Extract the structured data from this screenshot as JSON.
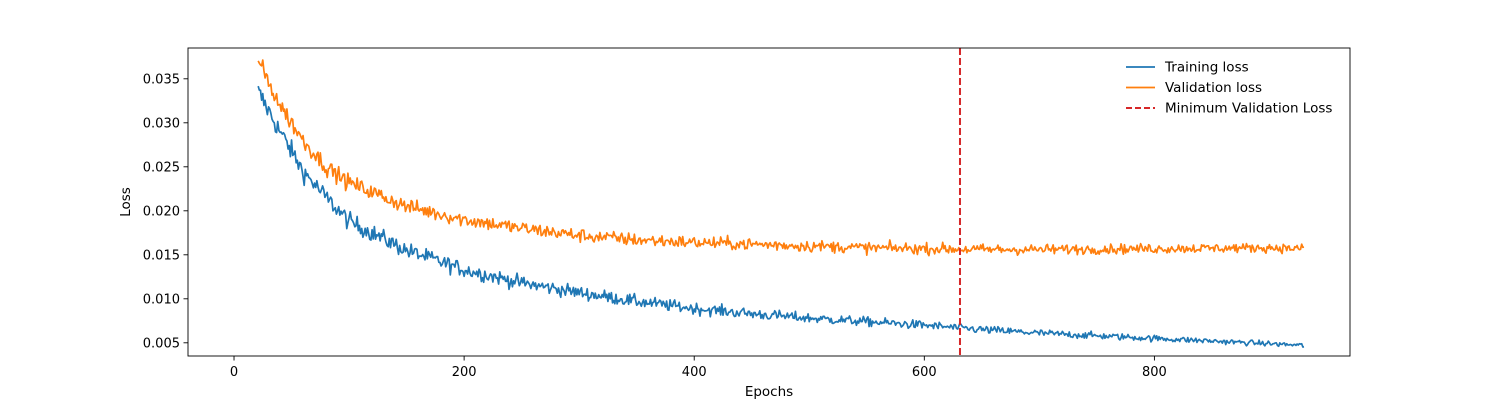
{
  "chart_data": {
    "type": "line",
    "title": "",
    "xlabel": "Epochs",
    "ylabel": "Loss",
    "xlim": [
      -40,
      970
    ],
    "ylim": [
      0.0035,
      0.0385
    ],
    "xticks": [
      0,
      200,
      400,
      600,
      800
    ],
    "xtick_labels": [
      "0",
      "200",
      "400",
      "600",
      "800"
    ],
    "yticks": [
      0.005,
      0.01,
      0.015,
      0.02,
      0.025,
      0.03,
      0.035
    ],
    "ytick_labels": [
      "0.005",
      "0.010",
      "0.015",
      "0.020",
      "0.025",
      "0.030",
      "0.035"
    ],
    "grid": false,
    "legend_position": "top-right",
    "x_range": [
      21,
      930
    ],
    "series": [
      {
        "name": "Training loss",
        "color": "#1f77b4",
        "anchors": [
          [
            21,
            0.0335
          ],
          [
            40,
            0.029
          ],
          [
            60,
            0.0245
          ],
          [
            80,
            0.0215
          ],
          [
            100,
            0.0188
          ],
          [
            150,
            0.0155
          ],
          [
            200,
            0.0133
          ],
          [
            250,
            0.0118
          ],
          [
            300,
            0.0107
          ],
          [
            350,
            0.0097
          ],
          [
            400,
            0.0089
          ],
          [
            450,
            0.0083
          ],
          [
            500,
            0.0078
          ],
          [
            550,
            0.0074
          ],
          [
            600,
            0.007
          ],
          [
            650,
            0.0065
          ],
          [
            700,
            0.0061
          ],
          [
            750,
            0.0058
          ],
          [
            800,
            0.0055
          ],
          [
            850,
            0.0052
          ],
          [
            900,
            0.0049
          ],
          [
            930,
            0.0047
          ]
        ],
        "noise_start": 0.0012,
        "noise_end": 0.00025
      },
      {
        "name": "Validation loss",
        "color": "#ff7f0e",
        "anchors": [
          [
            21,
            0.037
          ],
          [
            40,
            0.032
          ],
          [
            60,
            0.028
          ],
          [
            80,
            0.025
          ],
          [
            100,
            0.0232
          ],
          [
            150,
            0.0205
          ],
          [
            200,
            0.019
          ],
          [
            250,
            0.018
          ],
          [
            300,
            0.0172
          ],
          [
            350,
            0.0167
          ],
          [
            400,
            0.0164
          ],
          [
            450,
            0.0162
          ],
          [
            500,
            0.016
          ],
          [
            550,
            0.0158
          ],
          [
            600,
            0.0157
          ],
          [
            650,
            0.0156
          ],
          [
            700,
            0.0156
          ],
          [
            800,
            0.0157
          ],
          [
            900,
            0.0158
          ],
          [
            930,
            0.0157
          ]
        ],
        "noise_start": 0.001,
        "noise_end": 0.00045
      },
      {
        "name": "Minimum Validation Loss",
        "color": "#d62728",
        "type": "vline",
        "x": 631
      }
    ]
  }
}
